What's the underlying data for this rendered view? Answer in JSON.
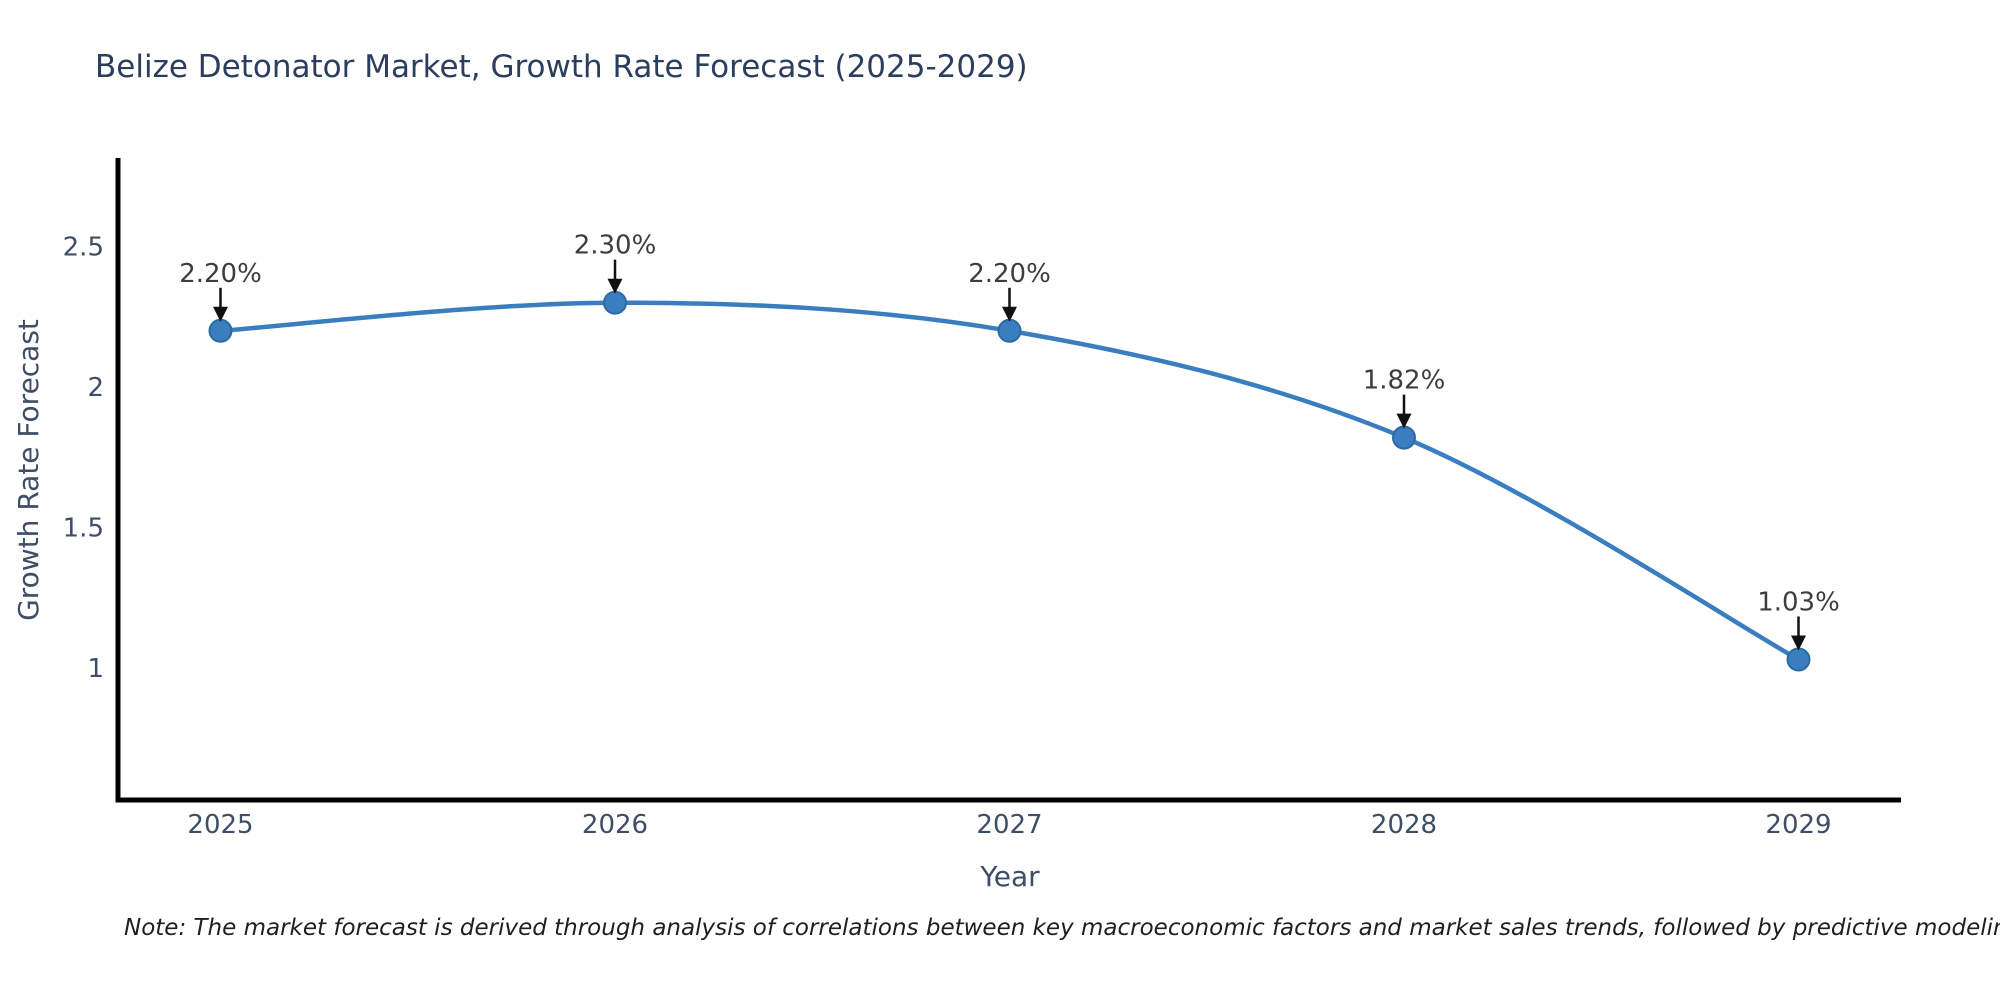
{
  "note": "Note: The market forecast is derived through analysis of correlations between key macroeconomic factors and market sales trends, followed by predictive modeling to project future sales",
  "chart_data": {
    "type": "line",
    "title": "Belize Detonator Market, Growth Rate Forecast (2025-2029)",
    "xlabel": "Year",
    "ylabel": "Growth Rate Forecast",
    "categories": [
      "2025",
      "2026",
      "2027",
      "2028",
      "2029"
    ],
    "series": [
      {
        "name": "Growth Rate Forecast",
        "values": [
          2.2,
          2.3,
          2.2,
          1.82,
          1.03
        ]
      }
    ],
    "point_labels": [
      "2.20%",
      "2.30%",
      "2.20%",
      "1.82%",
      "1.03%"
    ],
    "yticks": [
      1,
      1.5,
      2,
      2.5
    ],
    "ylim": [
      0.53,
      2.815
    ],
    "line_shape": "spline",
    "grid": false,
    "legend_position": "none",
    "annotations_style": "label-with-down-arrow",
    "colors": {
      "line": "#3a7ebf",
      "marker": "#3a7ebf",
      "marker_edge": "#2b6ba3",
      "axis": "#000000",
      "tick_text": "#3f4d66",
      "title_text": "#2c3e5d",
      "annotation_text": "#3d3d3d",
      "arrow": "#111111"
    }
  }
}
